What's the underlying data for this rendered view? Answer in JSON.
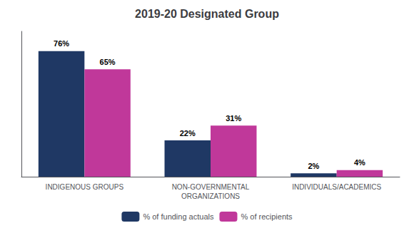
{
  "chart_data": {
    "type": "bar",
    "title": "2019-20 Designated Group",
    "categories": [
      "INDIGENOUS GROUPS",
      "NON-GOVERNMENTAL\nORGANIZATIONS",
      "INDIVIDUALS/ACADEMICS"
    ],
    "series": [
      {
        "name": "% of funding actuals",
        "color": "#1F3864",
        "values": [
          76,
          22,
          2
        ],
        "value_labels": [
          "76%",
          "22%",
          "2%"
        ]
      },
      {
        "name": "% of recipients",
        "color": "#C0389A",
        "values": [
          65,
          31,
          4
        ],
        "value_labels": [
          "65%",
          "31%",
          "4%"
        ]
      }
    ],
    "ylim": [
      0,
      88
    ],
    "yticks": [],
    "grid": false,
    "legend": "bottom",
    "data_labels": true,
    "tick_labels": "x"
  }
}
